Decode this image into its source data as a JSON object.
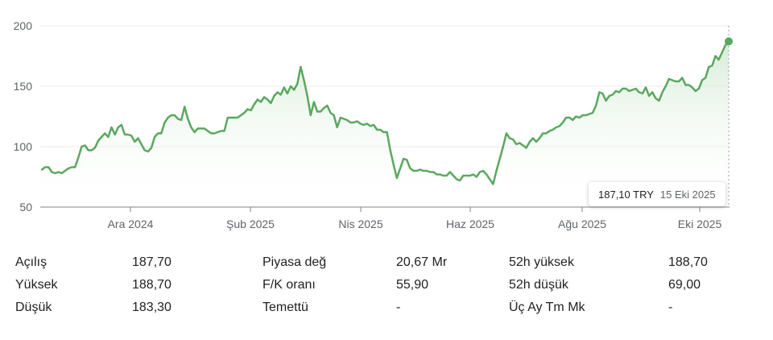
{
  "chart_data": {
    "type": "area",
    "currency": "TRY",
    "y_ticks": [
      50,
      100,
      150,
      200
    ],
    "ylim": [
      50,
      200
    ],
    "x_ticks": [
      "Ara 2024",
      "Şub 2025",
      "Nis 2025",
      "Haz 2025",
      "Ağu 2025",
      "Eki 2025"
    ],
    "grid": true,
    "series": [
      {
        "values": [
          81,
          83,
          83,
          79,
          78,
          79,
          78,
          80,
          82,
          83,
          83,
          91,
          100,
          101,
          97,
          97,
          99,
          105,
          108,
          111,
          108,
          116,
          110,
          116,
          118,
          110,
          110,
          109,
          104,
          107,
          102,
          97,
          96,
          99,
          108,
          111,
          111,
          120,
          124,
          126,
          126,
          123,
          122,
          133,
          123,
          116,
          112,
          115,
          115,
          115,
          113,
          111,
          111,
          112,
          113,
          113,
          124,
          124,
          124,
          124,
          126,
          128,
          131,
          130,
          135,
          139,
          137,
          141,
          139,
          136,
          142,
          145,
          143,
          149,
          144,
          150,
          147,
          152,
          166,
          155,
          142,
          126,
          137,
          129,
          129,
          132,
          134,
          128,
          126,
          116,
          124,
          123,
          122,
          120,
          120,
          121,
          119,
          118,
          119,
          117,
          118,
          114,
          114,
          112,
          112,
          97,
          85,
          74,
          82,
          90,
          89,
          82,
          80,
          80,
          81,
          80,
          80,
          79,
          79,
          77,
          77,
          76,
          76,
          79,
          76,
          73,
          72,
          76,
          76,
          76,
          77,
          75,
          79,
          80,
          77,
          73,
          69,
          80,
          90,
          100,
          111,
          107,
          106,
          102,
          103,
          101,
          99,
          104,
          107,
          104,
          107,
          111,
          111,
          113,
          114,
          116,
          117,
          120,
          124,
          124,
          122,
          125,
          124,
          126,
          126,
          127,
          128,
          134,
          145,
          144,
          138,
          142,
          143,
          146,
          145,
          148,
          148,
          146,
          147,
          148,
          145,
          144,
          149,
          142,
          145,
          140,
          138,
          145,
          150,
          156,
          155,
          154,
          154,
          157,
          151,
          151,
          149,
          146,
          148,
          155,
          157,
          166,
          167,
          175,
          172,
          178,
          184,
          187.1
        ]
      }
    ]
  },
  "tooltip": {
    "price": "187,10 TRY",
    "date": "15 Eki 2025"
  },
  "stats": {
    "rows": [
      [
        {
          "label": "Açılış",
          "value": "187,70"
        },
        {
          "label": "Piyasa değ",
          "value": "20,67 Mr"
        },
        {
          "label": "52h yüksek",
          "value": "188,70"
        }
      ],
      [
        {
          "label": "Yüksek",
          "value": "188,70"
        },
        {
          "label": "F/K oranı",
          "value": "55,90"
        },
        {
          "label": "52h düşük",
          "value": "69,00"
        }
      ],
      [
        {
          "label": "Düşük",
          "value": "183,30"
        },
        {
          "label": "Temettü",
          "value": "-"
        },
        {
          "label": "Üç Ay Tm Mk",
          "value": "-"
        }
      ]
    ]
  },
  "colors": {
    "line": "#5aa85e",
    "area_top": "#cfe8cf",
    "grid": "#e8eaed",
    "axis": "#80868b"
  }
}
